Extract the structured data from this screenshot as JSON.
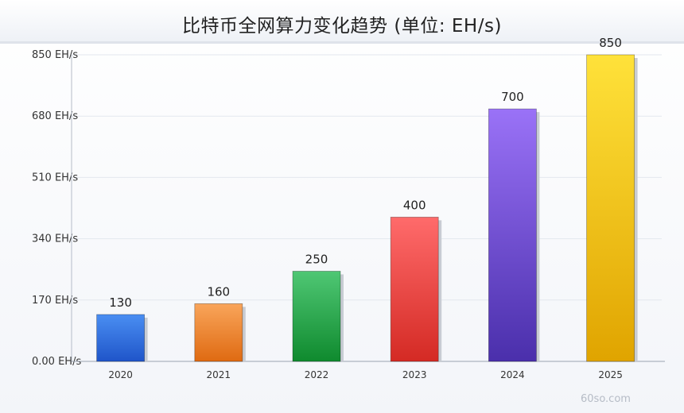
{
  "chart_data": {
    "type": "bar",
    "title": "比特币全网算力变化趋势 (单位: EH/s)",
    "categories": [
      "2020",
      "2021",
      "2022",
      "2023",
      "2024",
      "2025"
    ],
    "values": [
      130,
      160,
      250,
      400,
      700,
      850
    ],
    "y_ticks": [
      "0.00 EH/s",
      "170 EH/s",
      "340 EH/s",
      "510 EH/s",
      "680 EH/s",
      "850 EH/s"
    ],
    "ylim": [
      0,
      850
    ],
    "grid": true,
    "legend": "none",
    "bar_colors": [
      [
        "#4a8ef2",
        "#1f55c9"
      ],
      [
        "#f9a55a",
        "#df6a12"
      ],
      [
        "#4fc774",
        "#0f8a2e"
      ],
      [
        "#ff6b6b",
        "#d42a24"
      ],
      [
        "#9a72f7",
        "#4a2fab"
      ],
      [
        "#ffe23a",
        "#e0a400"
      ]
    ]
  },
  "watermark": "60so.com"
}
